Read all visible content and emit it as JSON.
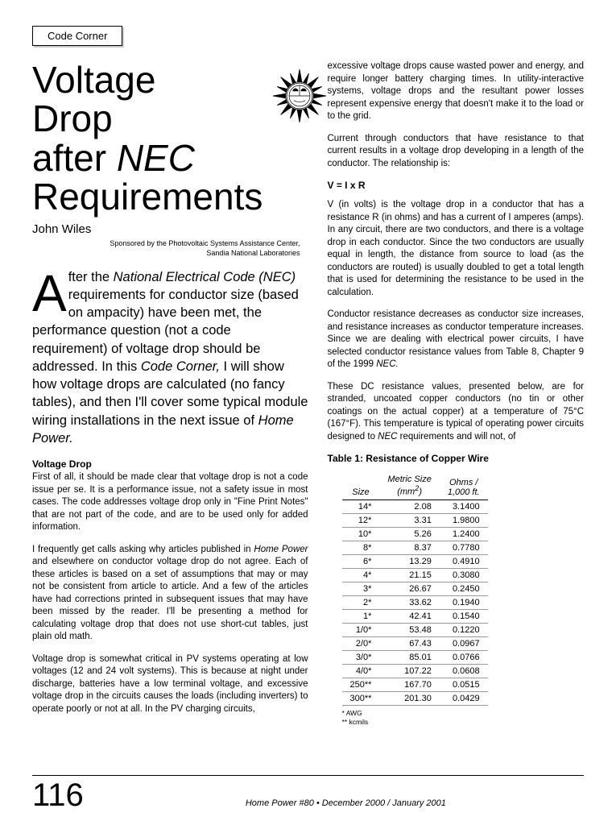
{
  "corner_label": "Code Corner",
  "title_lines": [
    "Voltage",
    "Drop",
    "after NEC",
    "Requirements"
  ],
  "author": "John Wiles",
  "sponsor_line1": "Sponsored by the Photovoltaic Systems Assistance Center,",
  "sponsor_line2": "Sandia National Laboratories",
  "intro_text": "fter the National Electrical Code (NEC) requirements for conductor size (based on ampacity) have been met, the performance question (not a code requirement) of voltage drop should be addressed. In this Code Corner, I will show how voltage drops are calculated (no fancy tables), and then I'll cover some typical module wiring installations in the next issue of Home Power.",
  "subhead_voltage_drop": "Voltage Drop",
  "para_vd1": "First of all, it should be made clear that voltage drop is not a code issue per se. It is a performance issue, not a safety issue in most cases. The code addresses voltage drop only in \"Fine Print Notes\" that are not part of the code, and are to be used only for added information.",
  "para_vd2": "I frequently get calls asking why articles published in Home Power and elsewhere on conductor voltage drop do not agree. Each of these articles is based on a set of assumptions that may or may not be consistent from article to article. And a few of the articles have had corrections printed in subsequent issues that may have been missed by the reader. I'll be presenting a method for calculating voltage drop that does not use short-cut tables, just plain old math.",
  "para_vd3": "Voltage drop is somewhat critical in PV systems operating at low voltages (12 and 24 volt systems). This is because at night under discharge, batteries have a low terminal voltage, and excessive voltage drop in the circuits causes the loads (including inverters) to operate poorly or not at all. In the PV charging circuits,",
  "para_r1": "excessive voltage drops cause wasted power and energy, and require longer battery charging times. In utility-interactive systems, voltage drops and the resultant power losses represent expensive energy that doesn't make it to the load or to the grid.",
  "para_r2": "Current through conductors that have resistance to that current results in a voltage drop developing in a length of the conductor. The relationship is:",
  "formula": "V = I x R",
  "para_r3": "V (in volts) is the voltage drop in a conductor that has a resistance R (in ohms) and has a current of I amperes (amps). In any circuit, there are two conductors, and there is a voltage drop in each conductor. Since the two conductors are usually equal in length, the distance from source to load (as the conductors are routed) is usually doubled to get a total length that is used for determining the resistance to be used in the calculation.",
  "para_r4": "Conductor resistance decreases as conductor size increases, and resistance increases as conductor temperature increases. Since we are dealing with electrical power circuits, I have selected conductor resistance values from Table 8, Chapter 9 of the 1999 NEC.",
  "para_r5": "These DC resistance values, presented below, are for stranded, uncoated copper conductors (no tin or other coatings on the actual copper) at a temperature of 75°C (167°F). This temperature is typical of operating power circuits designed to NEC requirements and will not, of",
  "table_title": "Table 1: Resistance of Copper Wire",
  "table": {
    "columns": [
      "Size",
      "Metric Size (mm²)",
      "Ohms / 1,000 ft."
    ],
    "rows": [
      [
        "14*",
        "2.08",
        "3.1400"
      ],
      [
        "12*",
        "3.31",
        "1.9800"
      ],
      [
        "10*",
        "5.26",
        "1.2400"
      ],
      [
        "8*",
        "8.37",
        "0.7780"
      ],
      [
        "6*",
        "13.29",
        "0.4910"
      ],
      [
        "4*",
        "21.15",
        "0.3080"
      ],
      [
        "3*",
        "26.67",
        "0.2450"
      ],
      [
        "2*",
        "33.62",
        "0.1940"
      ],
      [
        "1*",
        "42.41",
        "0.1540"
      ],
      [
        "1/0*",
        "53.48",
        "0.1220"
      ],
      [
        "2/0*",
        "67.43",
        "0.0967"
      ],
      [
        "3/0*",
        "85.01",
        "0.0766"
      ],
      [
        "4/0*",
        "107.22",
        "0.0608"
      ],
      [
        "250**",
        "167.70",
        "0.0515"
      ],
      [
        "300**",
        "201.30",
        "0.0429"
      ]
    ],
    "note1": "* AWG",
    "note2": "** kcmils"
  },
  "page_number": "116",
  "footer_text": "Home Power #80  •  December 2000 / January 2001"
}
